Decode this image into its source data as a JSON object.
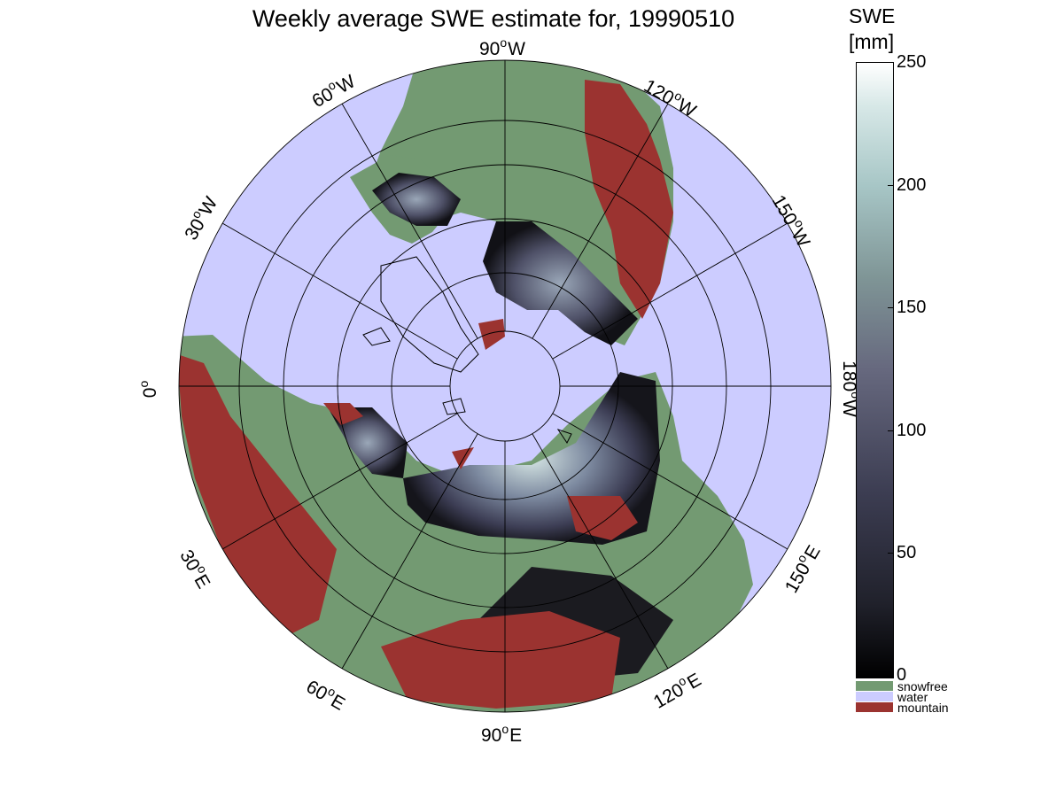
{
  "title": "Weekly average SWE estimate for, 19990510",
  "longitude_labels": {
    "top": "90",
    "top_suffix": "W",
    "w60": "60",
    "w60_suffix": "W",
    "w30": "30",
    "w30_suffix": "W",
    "w120": "120",
    "w120_suffix": "W",
    "w150": "150",
    "w150_suffix": "W",
    "left": "0",
    "left_suffix": "",
    "right": "180",
    "right_suffix": "W",
    "e30": "30",
    "e30_suffix": "E",
    "e60": "60",
    "e60_suffix": "E",
    "bottom": "90",
    "bottom_suffix": "E",
    "e120": "120",
    "e120_suffix": "E",
    "e150": "150",
    "e150_suffix": "E"
  },
  "colorbar": {
    "title_line1": "SWE",
    "title_line2": "[mm]",
    "ticks": [
      "250",
      "200",
      "150",
      "100",
      "50",
      "0"
    ],
    "range": [
      0,
      250
    ]
  },
  "legend": [
    {
      "label": "snowfree",
      "color": "#739a72"
    },
    {
      "label": "water",
      "color": "#ccccff"
    },
    {
      "label": "mountain",
      "color": "#9b3330"
    }
  ],
  "colors": {
    "water": "#ccccff",
    "snowfree": "#739a72",
    "mountain": "#9b3330",
    "snow_low": "#000000",
    "snow_high": "#ffffff"
  }
}
